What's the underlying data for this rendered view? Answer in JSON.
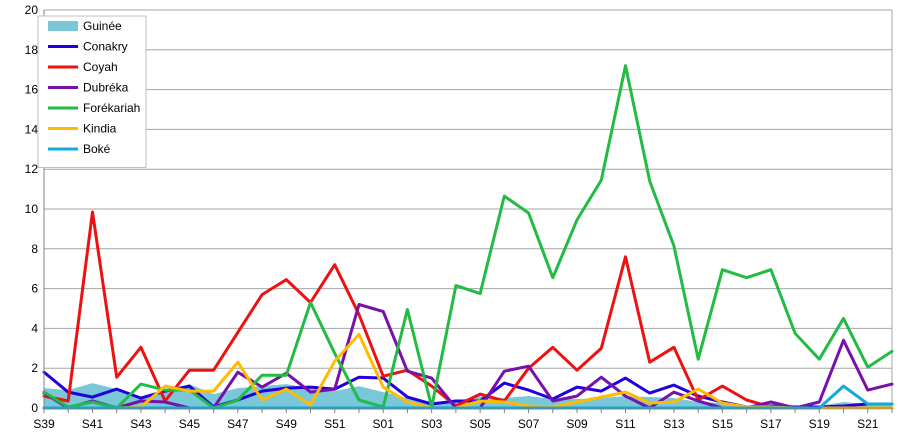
{
  "chart_data": {
    "type": "line",
    "title": "",
    "xlabel": "",
    "ylabel": "",
    "ylim": [
      0,
      20
    ],
    "yticks": [
      0,
      2,
      4,
      6,
      8,
      10,
      12,
      14,
      16,
      18,
      20
    ],
    "grid": "horizontal",
    "legend_position": "top-left",
    "categories": [
      "S39",
      "S40",
      "S41",
      "S42",
      "S43",
      "S44",
      "S45",
      "S46",
      "S47",
      "S48",
      "S49",
      "S50",
      "S51",
      "S52",
      "S01",
      "S02",
      "S03",
      "S04",
      "S05",
      "S06",
      "S07",
      "S08",
      "S09",
      "S10",
      "S11",
      "S12",
      "S13",
      "S14",
      "S15",
      "S16",
      "S17",
      "S18",
      "S19",
      "S20",
      "S21",
      "S22"
    ],
    "xtick_labels": [
      "S39",
      "S41",
      "S43",
      "S45",
      "S47",
      "S49",
      "S51",
      "S01",
      "S03",
      "S05",
      "S07",
      "S09",
      "S11",
      "S13",
      "S15",
      "S17",
      "S19",
      "S21"
    ],
    "series": [
      {
        "name": "Guinée",
        "kind": "area",
        "color": "#7ac7d7",
        "values": [
          1.0,
          0.9,
          1.25,
          0.95,
          0.55,
          0.8,
          1.2,
          0.7,
          1.0,
          1.1,
          1.2,
          1.0,
          0.85,
          1.1,
          0.8,
          0.5,
          0.3,
          0.35,
          0.6,
          0.5,
          0.6,
          0.45,
          0.45,
          0.5,
          0.6,
          0.55,
          0.5,
          0.3,
          0.25,
          0.1,
          0.2,
          0.1,
          0.1,
          0.3,
          0.2,
          0.2
        ]
      },
      {
        "name": "Conakry",
        "kind": "line",
        "color": "#2200dd",
        "values": [
          1.8,
          0.8,
          0.55,
          0.95,
          0.5,
          0.85,
          1.1,
          0.05,
          0.4,
          0.85,
          1.0,
          1.05,
          0.95,
          1.55,
          1.5,
          0.55,
          0.2,
          0.35,
          0.35,
          1.25,
          0.9,
          0.45,
          1.05,
          0.85,
          1.5,
          0.75,
          1.15,
          0.6,
          0.3,
          0.05,
          0.1,
          0.05,
          0.05,
          0.1,
          0.2,
          0.2
        ]
      },
      {
        "name": "Coyah",
        "kind": "line",
        "color": "#ee1111",
        "values": [
          0.6,
          0.35,
          9.85,
          1.55,
          3.05,
          0.35,
          1.9,
          1.9,
          3.8,
          5.7,
          6.45,
          5.3,
          7.2,
          4.7,
          1.6,
          1.9,
          1.1,
          0.1,
          0.7,
          0.35,
          2.0,
          3.05,
          1.9,
          3.0,
          7.6,
          2.3,
          3.05,
          0.4,
          1.1,
          0.4,
          0.05,
          0.0,
          0.0,
          0.0,
          0.0,
          0.0
        ]
      },
      {
        "name": "Dubréka",
        "kind": "line",
        "color": "#7711aa",
        "values": [
          0.75,
          0.0,
          0.35,
          0.0,
          0.35,
          0.3,
          0.0,
          0.0,
          1.8,
          1.05,
          1.75,
          0.8,
          0.95,
          5.2,
          4.85,
          1.85,
          1.5,
          0.0,
          0.0,
          1.85,
          2.1,
          0.35,
          0.6,
          1.55,
          0.6,
          0.0,
          0.8,
          0.35,
          0.0,
          0.0,
          0.3,
          0.0,
          0.3,
          3.4,
          0.9,
          1.2
        ]
      },
      {
        "name": "Forékariah",
        "kind": "line",
        "color": "#22bb44",
        "values": [
          0.8,
          0.05,
          0.3,
          0.0,
          1.2,
          0.9,
          0.9,
          0.0,
          0.4,
          1.65,
          1.65,
          5.3,
          2.75,
          0.4,
          0.05,
          4.95,
          0.05,
          6.15,
          5.75,
          10.65,
          9.8,
          6.55,
          9.45,
          11.45,
          17.2,
          11.4,
          8.15,
          2.45,
          6.95,
          6.55,
          6.95,
          3.75,
          2.45,
          4.5,
          2.05,
          2.85
        ]
      },
      {
        "name": "Kindia",
        "kind": "line",
        "color": "#ffbb00",
        "values": [
          0.0,
          0.0,
          0.0,
          0.0,
          0.05,
          1.1,
          0.85,
          0.85,
          2.3,
          0.4,
          0.95,
          0.15,
          2.35,
          3.7,
          1.05,
          0.3,
          0.0,
          0.0,
          0.35,
          0.3,
          0.1,
          0.05,
          0.3,
          0.55,
          0.8,
          0.25,
          0.3,
          0.95,
          0.25,
          0.05,
          0.05,
          0.0,
          0.0,
          0.0,
          0.0,
          0.0
        ]
      },
      {
        "name": "Boké",
        "kind": "line",
        "color": "#11aadd",
        "values": [
          0.0,
          0.0,
          0.0,
          0.0,
          0.0,
          0.0,
          0.0,
          0.0,
          0.0,
          0.0,
          0.0,
          0.0,
          0.0,
          0.0,
          0.0,
          0.0,
          0.0,
          0.0,
          0.0,
          0.0,
          0.0,
          0.0,
          0.0,
          0.0,
          0.0,
          0.0,
          0.0,
          0.0,
          0.0,
          0.0,
          0.0,
          0.0,
          0.0,
          1.1,
          0.2,
          0.2
        ]
      }
    ]
  }
}
